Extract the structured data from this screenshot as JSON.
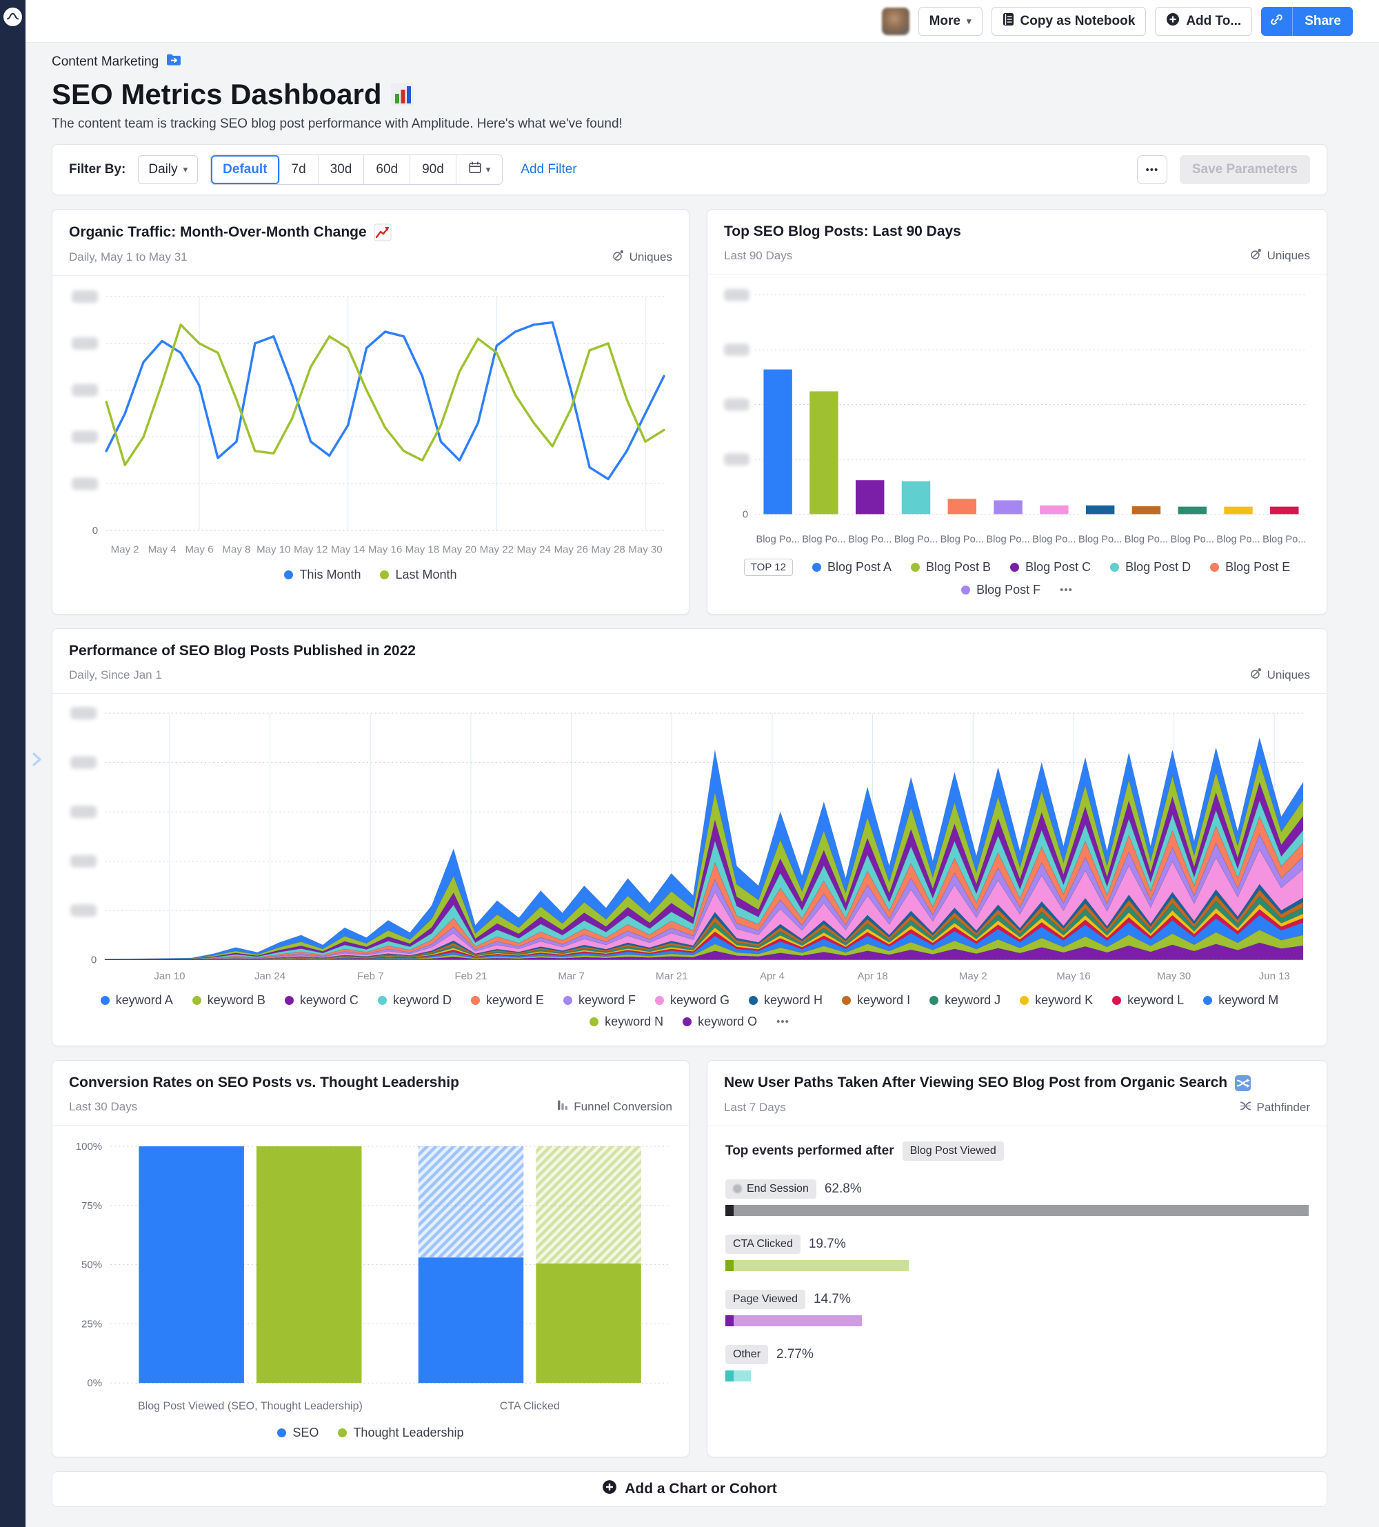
{
  "sidebar": {
    "logo_icon": "amplitude-logo",
    "expand_icon": "chevron-right-icon"
  },
  "topbar": {
    "more_label": "More",
    "copy_notebook_label": "Copy as Notebook",
    "add_to_label": "Add To...",
    "share_label": "Share"
  },
  "header": {
    "breadcrumb": "Content Marketing",
    "title": "SEO Metrics Dashboard",
    "title_emoji": "bar-chart-emoji",
    "subtitle": "The content team is tracking SEO blog post performance with Amplitude. Here's what we've found!"
  },
  "filter_bar": {
    "label": "Filter By:",
    "interval": "Daily",
    "ranges": [
      "Default",
      "7d",
      "30d",
      "60d",
      "90d"
    ],
    "selected_range": "Default",
    "calendar_icon": "calendar-icon",
    "add_filter_label": "Add Filter",
    "more_label": "•••",
    "save_label": "Save Parameters"
  },
  "add_chart": {
    "label": "Add a Chart or Cohort"
  },
  "chart_data": [
    {
      "type": "line",
      "title": "Organic Traffic: Month-Over-Month Change",
      "title_emoji": "chart-increasing-emoji",
      "subtitle": "Daily, May 1 to May 31",
      "chart_type_label": "Uniques",
      "y_axis": {
        "redacted": true,
        "zero_label": "0",
        "gridlines": 5
      },
      "ylim": [
        0,
        100
      ],
      "x_ticks": [
        "May 2",
        "May 4",
        "May 6",
        "May 8",
        "May 10",
        "May 12",
        "May 14",
        "May 16",
        "May 18",
        "May 20",
        "May 22",
        "May 24",
        "May 26",
        "May 28",
        "May 30"
      ],
      "x_tick_day_index": [
        1,
        3,
        5,
        7,
        9,
        11,
        13,
        15,
        17,
        19,
        21,
        23,
        25,
        27,
        29
      ],
      "v_gridline_day_index": [
        5,
        13,
        21,
        29
      ],
      "series": [
        {
          "name": "This Month",
          "color": "#2d7ff9",
          "values": [
            34,
            50,
            72,
            81,
            76,
            62,
            31,
            38,
            80,
            83,
            62,
            38,
            32,
            45,
            78,
            85,
            83,
            66,
            38,
            30,
            46,
            79,
            85,
            88,
            89,
            60,
            27,
            22,
            34,
            50,
            66
          ]
        },
        {
          "name": "Last Month",
          "color": "#9fc131",
          "values": [
            55,
            28,
            40,
            63,
            88,
            80,
            76,
            56,
            34,
            33,
            48,
            70,
            83,
            78,
            60,
            44,
            34,
            30,
            45,
            68,
            82,
            76,
            58,
            46,
            36,
            52,
            77,
            80,
            56,
            38,
            43
          ]
        }
      ]
    },
    {
      "type": "bar",
      "title": "Top SEO Blog Posts: Last 90 Days",
      "subtitle": "Last 90 Days",
      "chart_type_label": "Uniques",
      "y_axis": {
        "redacted": true,
        "zero_label": "0",
        "gridlines": 4
      },
      "x_labels": [
        "Blog Po...",
        "Blog Po...",
        "Blog Po...",
        "Blog Po...",
        "Blog Po...",
        "Blog Po...",
        "Blog Po...",
        "Blog Po...",
        "Blog Po...",
        "Blog Po...",
        "Blog Po...",
        "Blog Po..."
      ],
      "values": [
        66,
        56,
        15.5,
        15,
        7,
        6.3,
        4,
        4,
        3.6,
        3.4,
        3.4,
        3.4
      ],
      "colors": [
        "#2d7ff9",
        "#9fc131",
        "#7c1fa8",
        "#5fcfcf",
        "#f97e5d",
        "#a586f2",
        "#f593e1",
        "#176399",
        "#c16a21",
        "#2c8c71",
        "#f2c012",
        "#d8164e"
      ],
      "legend": {
        "badge": "TOP 12",
        "items": [
          {
            "label": "Blog Post A",
            "color": "#2d7ff9"
          },
          {
            "label": "Blog Post B",
            "color": "#9fc131"
          },
          {
            "label": "Blog Post C",
            "color": "#7c1fa8"
          },
          {
            "label": "Blog Post D",
            "color": "#5fcfcf"
          },
          {
            "label": "Blog Post E",
            "color": "#f97e5d"
          },
          {
            "label": "Blog Post F",
            "color": "#a586f2"
          }
        ],
        "more": "•••"
      }
    },
    {
      "type": "area",
      "title": "Performance of SEO Blog Posts Published in 2022",
      "subtitle": "Daily, Since Jan 1",
      "chart_type_label": "Uniques",
      "y_axis": {
        "redacted": true,
        "zero_label": "0",
        "gridlines": 5
      },
      "x_ticks": [
        "Jan 10",
        "Jan 24",
        "Feb 7",
        "Feb 21",
        "Mar 7",
        "Mar 21",
        "Apr 4",
        "Apr 18",
        "May 2",
        "May 16",
        "May 30",
        "Jun 13"
      ],
      "x_tick_day_index": [
        9,
        23,
        37,
        51,
        65,
        79,
        93,
        107,
        121,
        135,
        149,
        163
      ],
      "days_span": 167,
      "series": [
        {
          "name": "keyword A",
          "color": "#2d7ff9"
        },
        {
          "name": "keyword B",
          "color": "#9fc131"
        },
        {
          "name": "keyword C",
          "color": "#7c1fa8"
        },
        {
          "name": "keyword D",
          "color": "#5fcfcf"
        },
        {
          "name": "keyword E",
          "color": "#f97e5d"
        },
        {
          "name": "keyword F",
          "color": "#a586f2"
        },
        {
          "name": "keyword G",
          "color": "#f593e1"
        },
        {
          "name": "keyword H",
          "color": "#176399"
        },
        {
          "name": "keyword I",
          "color": "#c16a21"
        },
        {
          "name": "keyword J",
          "color": "#2c8c71"
        },
        {
          "name": "keyword K",
          "color": "#f2c012"
        },
        {
          "name": "keyword L",
          "color": "#d8164e"
        },
        {
          "name": "keyword M",
          "color": "#2d7ff9"
        },
        {
          "name": "keyword N",
          "color": "#9fc131"
        },
        {
          "name": "keyword O",
          "color": "#7c1fa8"
        }
      ],
      "total_envelope": [
        0.3,
        0.4,
        0.5,
        0.6,
        0.8,
        2.5,
        5,
        3,
        7,
        10,
        6,
        13,
        9,
        16,
        11,
        22,
        45,
        14,
        24,
        17,
        28,
        19,
        30,
        21,
        33,
        23,
        35,
        26,
        85,
        38,
        30,
        60,
        34,
        64,
        33,
        70,
        38,
        74,
        40,
        76,
        42,
        78,
        44,
        80,
        46,
        82,
        44,
        84,
        46,
        85,
        48,
        86,
        52,
        90,
        58,
        72
      ],
      "series_weights_start": [
        30,
        18,
        12,
        14,
        8,
        5,
        3,
        2,
        2,
        1.5,
        1.5,
        1.5,
        0.6,
        0.5,
        0.4
      ],
      "series_weights_end": [
        10,
        9,
        8,
        7,
        8,
        7,
        16,
        2.5,
        3,
        3.5,
        2.5,
        2.5,
        7,
        6,
        8
      ],
      "legend_more": "•••"
    },
    {
      "type": "funnel_bar",
      "title": "Conversion Rates on SEO Posts vs. Thought Leadership",
      "subtitle": "Last 30 Days",
      "chart_type_label": "Funnel Conversion",
      "y_ticks": [
        "100%",
        "75%",
        "50%",
        "25%",
        "0%"
      ],
      "y_tick_values": [
        100,
        75,
        50,
        25,
        0
      ],
      "categories": [
        "Blog Post Viewed (SEO, Thought Leadership)",
        "CTA Clicked"
      ],
      "series": [
        {
          "name": "SEO",
          "color": "#2d7ff9",
          "values": [
            100,
            53
          ]
        },
        {
          "name": "Thought Leadership",
          "color": "#9fc131",
          "values": [
            100,
            50.5
          ]
        }
      ]
    },
    {
      "type": "pathfinder",
      "title": "New User Paths Taken After Viewing SEO Blog Post from Organic Search",
      "title_emoji": "shuffle-emoji",
      "subtitle": "Last 7 Days",
      "chart_type_label": "Pathfinder",
      "heading": "Top events performed after",
      "heading_chip": "Blog Post Viewed",
      "max_pct": 62.8,
      "rows": [
        {
          "label": "End Session",
          "value": "62.8%",
          "pct": 62.8,
          "bar_color": "#9b9ca1",
          "lead_color": "#232429",
          "chip_dot": true
        },
        {
          "label": "CTA Clicked",
          "value": "19.7%",
          "pct": 19.7,
          "bar_color": "#cde098",
          "lead_color": "#7fae13",
          "chip_dot": false
        },
        {
          "label": "Page Viewed",
          "value": "14.7%",
          "pct": 14.7,
          "bar_color": "#cf9ce2",
          "lead_color": "#761fa5",
          "chip_dot": false
        },
        {
          "label": "Other",
          "value": "2.77%",
          "pct": 2.77,
          "bar_color": "#9de6e4",
          "lead_color": "#3ec4c0",
          "chip_dot": false
        }
      ]
    }
  ]
}
